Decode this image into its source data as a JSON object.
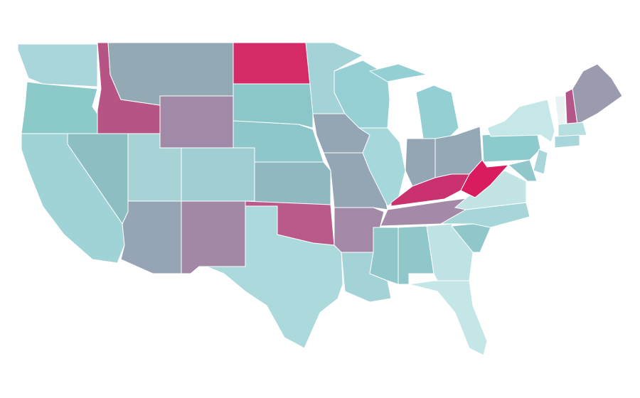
{
  "map": {
    "type": "choropleth",
    "background": "#ffffff",
    "stroke": "#ffffff",
    "regions": [
      {
        "color": "#a9d6da"
      },
      {
        "color": "#8ccaca"
      },
      {
        "color": "#b65585"
      },
      {
        "color": "#93aab5"
      },
      {
        "color": "#a08aa8"
      },
      {
        "color": "#d42a68"
      },
      {
        "color": "#8bc6c9"
      },
      {
        "color": "#8dc6cb"
      },
      {
        "color": "#9fcfd3"
      },
      {
        "color": "#a7d3d7"
      },
      {
        "color": "#8dbfc2"
      },
      {
        "color": "#a0d3d6"
      },
      {
        "color": "#96a5b5"
      },
      {
        "color": "#a288a5"
      },
      {
        "color": "#8fb8c0"
      },
      {
        "color": "#b95a8a"
      },
      {
        "color": "#acd9db"
      },
      {
        "color": "#a4d3d7"
      },
      {
        "color": "#94a5b3"
      },
      {
        "color": "#94a5b3"
      },
      {
        "color": "#a389a7"
      },
      {
        "color": "#a4d3d7"
      },
      {
        "color": "#96cfd4"
      },
      {
        "color": "#a6d8db"
      },
      {
        "color": "#94cfd3"
      },
      {
        "color": "#94cfd3"
      },
      {
        "color": "#94a5b3"
      },
      {
        "color": "#94a8b5"
      },
      {
        "color": "#c9316f"
      },
      {
        "color": "#a48aa8"
      },
      {
        "color": "#8fc7ca"
      },
      {
        "color": "#8fc7ca"
      },
      {
        "color": "#bfe3e4"
      },
      {
        "color": "#c5e6e7"
      },
      {
        "color": "#8fc7ca"
      },
      {
        "color": "#a7d6d9"
      },
      {
        "color": "#c3e4e5"
      },
      {
        "color": "#d91c5f"
      },
      {
        "color": "#8ccacd"
      },
      {
        "color": "#c6e7e8"
      },
      {
        "color": "#a9d6da"
      },
      {
        "color": "#90c7cb"
      },
      {
        "color": "#eaf3f4"
      },
      {
        "color": "#b45688"
      },
      {
        "color": "#9b9bb0"
      },
      {
        "color": "#b8dfe0"
      },
      {
        "color": "#a9d6da"
      }
    ]
  }
}
